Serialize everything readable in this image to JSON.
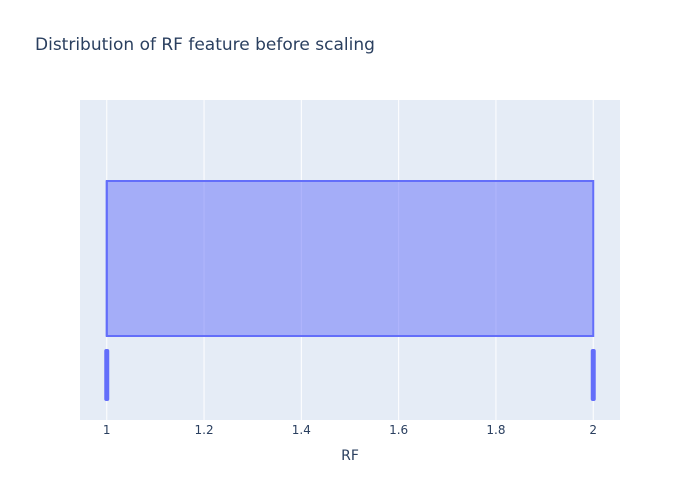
{
  "chart_data": {
    "type": "box",
    "title": "Distribution of RF feature before scaling",
    "xlabel": "RF",
    "ylabel": "",
    "orientation": "horizontal",
    "xlim": [
      0.945,
      2.055
    ],
    "xticks": [
      1,
      1.2,
      1.4,
      1.6,
      1.8,
      2
    ],
    "xtick_labels": [
      "1",
      "1.2",
      "1.4",
      "1.6",
      "1.8",
      "2"
    ],
    "grid": true,
    "box": {
      "min": 1,
      "q1": 1,
      "median": 1,
      "q3": 2,
      "max": 2
    },
    "points": [
      1,
      2
    ],
    "colors": {
      "plot_background": "#E5ECF6",
      "gridline": "#ffffff",
      "box_line": "#636EFA",
      "box_fill": "rgba(99,110,250,0.5)",
      "text": "#2a3f5f"
    }
  }
}
